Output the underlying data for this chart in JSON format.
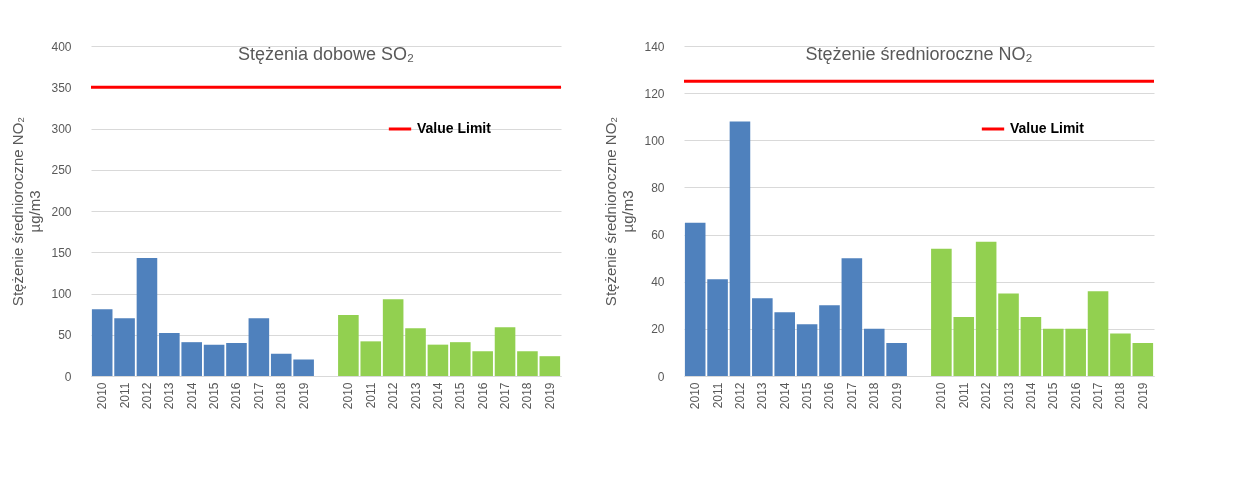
{
  "chart_data": [
    {
      "type": "bar",
      "title": "Stężenia dobowe SO₂",
      "ylabel": "Stężenie średnioroczne NO₂\nµg/m3",
      "categories": [
        "2010",
        "2011",
        "2012",
        "2013",
        "2014",
        "2015",
        "2016",
        "2017",
        "2018",
        "2019",
        null,
        "2010",
        "2011",
        "2012",
        "2013",
        "2014",
        "2015",
        "2016",
        "2017",
        "2018",
        "2019"
      ],
      "series": [
        {
          "color": "#4f81bd",
          "values": [
            81,
            70,
            143,
            52,
            41,
            38,
            40,
            70,
            27,
            20,
            null,
            null,
            null,
            null,
            null,
            null,
            null,
            null,
            null,
            null,
            null
          ]
        },
        {
          "color": "#92d050",
          "values": [
            null,
            null,
            null,
            null,
            null,
            null,
            null,
            null,
            null,
            null,
            null,
            74,
            42,
            93,
            58,
            38,
            41,
            30,
            59,
            30,
            24
          ]
        }
      ],
      "ylim": [
        0,
        400
      ],
      "yticks": [
        0,
        50,
        100,
        150,
        200,
        250,
        300,
        350,
        400
      ],
      "grid": "y",
      "legend": "top right",
      "ref_lines": [
        {
          "axis": "y",
          "value": 350,
          "label": "Value Limit",
          "color": "#ff0000"
        }
      ]
    },
    {
      "type": "bar",
      "title": "Stężenie średnioroczne NO₂",
      "ylabel": "Stężenie średnioroczne NO₂\nµg/m3",
      "categories": [
        "2010",
        "2011",
        "2012",
        "2013",
        "2014",
        "2015",
        "2016",
        "2017",
        "2018",
        "2019",
        null,
        "2010",
        "2011",
        "2012",
        "2013",
        "2014",
        "2015",
        "2016",
        "2017",
        "2018",
        "2019"
      ],
      "series": [
        {
          "color": "#4f81bd",
          "values": [
            65,
            41,
            108,
            33,
            27,
            22,
            30,
            50,
            20,
            14,
            null,
            null,
            null,
            null,
            null,
            null,
            null,
            null,
            null,
            null,
            null
          ]
        },
        {
          "color": "#92d050",
          "values": [
            null,
            null,
            null,
            null,
            null,
            null,
            null,
            null,
            null,
            null,
            null,
            54,
            25,
            57,
            35,
            25,
            20,
            20,
            36,
            18,
            14
          ]
        }
      ],
      "ylim": [
        0,
        140
      ],
      "yticks": [
        0,
        20,
        40,
        60,
        80,
        100,
        120,
        140
      ],
      "grid": "y",
      "legend": "top right",
      "ref_lines": [
        {
          "axis": "y",
          "value": 125,
          "label": "Value Limit",
          "color": "#ff0000"
        }
      ]
    }
  ]
}
